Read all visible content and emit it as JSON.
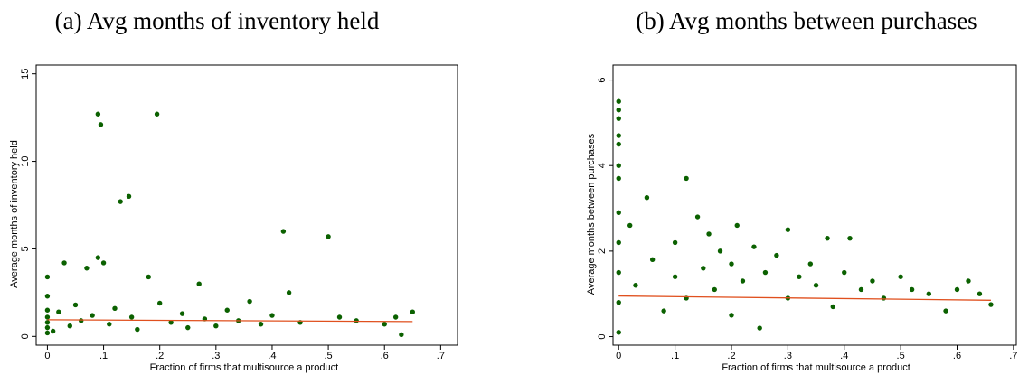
{
  "chart_data": [
    {
      "type": "scatter",
      "title": "(a) Avg months of inventory held",
      "xlabel": "Fraction of firms that multisource a product",
      "ylabel": "Average months of inventory held",
      "xlim": [
        -0.02,
        0.73
      ],
      "ylim": [
        -0.5,
        15.5
      ],
      "xticks": [
        0,
        {
          "value": 0.1,
          "label": ".1"
        },
        {
          "value": 0.2,
          "label": ".2"
        },
        {
          "value": 0.3,
          "label": ".3"
        },
        {
          "value": 0.4,
          "label": ".4"
        },
        {
          "value": 0.5,
          "label": ".5"
        },
        {
          "value": 0.6,
          "label": ".6"
        },
        {
          "value": 0.7,
          "label": ".7"
        }
      ],
      "yticks": [
        0,
        5,
        10,
        15
      ],
      "series": [
        {
          "type": "scatter",
          "color": "#0b6100",
          "x": [
            0,
            0,
            0,
            0,
            0,
            0,
            0,
            0.01,
            0.02,
            0.03,
            0.04,
            0.05,
            0.06,
            0.07,
            0.08,
            0.09,
            0.09,
            0.095,
            0.1,
            0.11,
            0.12,
            0.13,
            0.145,
            0.15,
            0.16,
            0.18,
            0.195,
            0.2,
            0.22,
            0.24,
            0.25,
            0.27,
            0.28,
            0.3,
            0.32,
            0.34,
            0.36,
            0.38,
            0.4,
            0.42,
            0.43,
            0.45,
            0.5,
            0.52,
            0.55,
            0.6,
            0.62,
            0.63,
            0.65
          ],
          "values": [
            0.2,
            0.8,
            1.5,
            2.3,
            3.4,
            0.5,
            1.1,
            0.3,
            1.4,
            4.2,
            0.6,
            1.8,
            0.9,
            3.9,
            1.2,
            12.7,
            4.5,
            12.1,
            4.2,
            0.7,
            1.6,
            7.7,
            8,
            1.1,
            0.4,
            3.4,
            12.7,
            1.9,
            0.8,
            1.3,
            0.5,
            3,
            1,
            0.6,
            1.5,
            0.9,
            2,
            0.7,
            1.2,
            6,
            2.5,
            0.8,
            5.7,
            1.1,
            0.9,
            0.7,
            1.1,
            0.1,
            1.4
          ]
        },
        {
          "type": "line",
          "color": "#e0501e",
          "x": [
            0,
            0.65
          ],
          "values": [
            0.95,
            0.85
          ]
        }
      ]
    },
    {
      "type": "scatter",
      "title": "(b) Avg months between purchases",
      "xlabel": "Fraction of firms that multisource a product",
      "ylabel": "Average months between purchases",
      "xlim": [
        -0.01,
        0.705
      ],
      "ylim": [
        -0.2,
        6.35
      ],
      "xticks": [
        0,
        {
          "value": 0.1,
          "label": ".1"
        },
        {
          "value": 0.2,
          "label": ".2"
        },
        {
          "value": 0.3,
          "label": ".3"
        },
        {
          "value": 0.4,
          "label": ".4"
        },
        {
          "value": 0.5,
          "label": ".5"
        },
        {
          "value": 0.6,
          "label": ".6"
        },
        {
          "value": 0.7,
          "label": ".7"
        }
      ],
      "yticks": [
        0,
        2,
        4,
        6
      ],
      "series": [
        {
          "type": "scatter",
          "color": "#0b6100",
          "x": [
            0,
            0,
            0,
            0,
            0,
            0,
            0,
            0,
            0,
            0,
            0,
            0,
            0.02,
            0.03,
            0.05,
            0.06,
            0.08,
            0.1,
            0.1,
            0.12,
            0.12,
            0.14,
            0.15,
            0.16,
            0.17,
            0.18,
            0.2,
            0.2,
            0.21,
            0.22,
            0.24,
            0.25,
            0.26,
            0.28,
            0.3,
            0.3,
            0.32,
            0.34,
            0.35,
            0.37,
            0.38,
            0.4,
            0.41,
            0.43,
            0.45,
            0.47,
            0.5,
            0.52,
            0.55,
            0.58,
            0.6,
            0.62,
            0.64,
            0.66
          ],
          "values": [
            5.5,
            5.3,
            5.1,
            4.7,
            4.5,
            4,
            3.7,
            2.9,
            2.2,
            1.5,
            0.8,
            0.1,
            2.6,
            1.2,
            3.25,
            1.8,
            0.6,
            2.2,
            1.4,
            3.7,
            0.9,
            2.8,
            1.6,
            2.4,
            1.1,
            2,
            1.7,
            0.5,
            2.6,
            1.3,
            2.1,
            0.2,
            1.5,
            1.9,
            2.5,
            0.9,
            1.4,
            1.7,
            1.2,
            2.3,
            0.7,
            1.5,
            2.3,
            1.1,
            1.3,
            0.9,
            1.4,
            1.1,
            1,
            0.6,
            1.1,
            1.3,
            1,
            0.75
          ]
        },
        {
          "type": "line",
          "color": "#e0501e",
          "x": [
            0,
            0.66
          ],
          "values": [
            0.95,
            0.85
          ]
        }
      ]
    }
  ]
}
